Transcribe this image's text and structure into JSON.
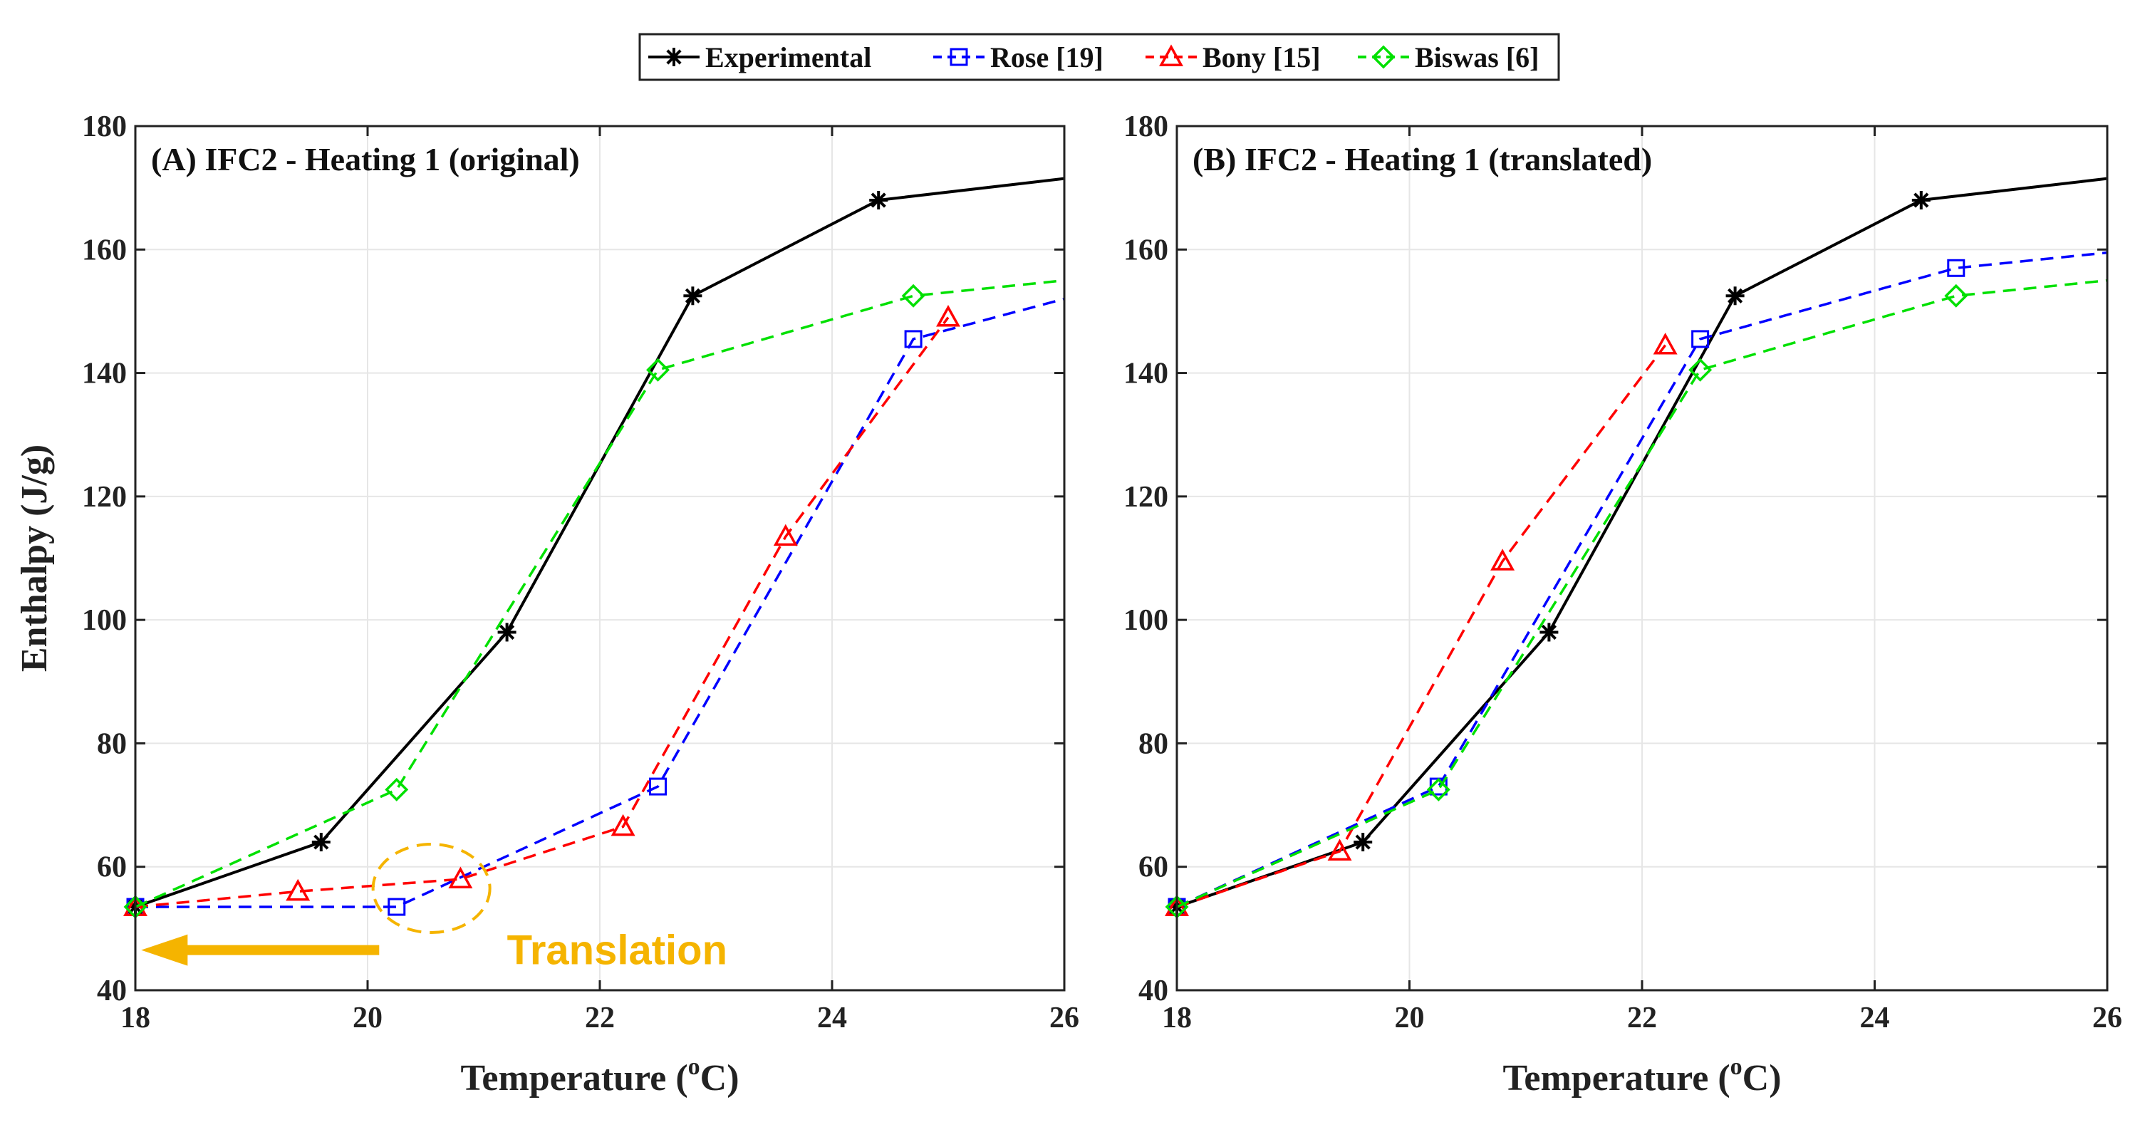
{
  "colors": {
    "experimental": "#000000",
    "rose": "#0000ff",
    "bony": "#ff0000",
    "biswas": "#00e000",
    "annotation": "#f5b400",
    "grid": "#e6e6e6"
  },
  "chart_data": [
    {
      "type": "line",
      "title": "(A) IFC2 - Heating 1 (original)",
      "xlabel": "Temperature (",
      "xlabel_sup": "o",
      "xlabel_end": "C)",
      "ylabel": "Enthalpy (J/g)",
      "xlim": [
        18,
        26
      ],
      "ylim": [
        40,
        180
      ],
      "xticks": [
        18,
        20,
        22,
        24,
        26
      ],
      "yticks": [
        40,
        60,
        80,
        100,
        120,
        140,
        160,
        180
      ],
      "annotation": {
        "text": "Translation"
      },
      "series": [
        {
          "name": "Experimental",
          "key": "experimental",
          "marker": "star",
          "dashed": false,
          "points": [
            [
              18.0,
              53.5
            ],
            [
              19.6,
              64
            ],
            [
              21.2,
              98
            ],
            [
              22.8,
              152.5
            ],
            [
              24.4,
              168
            ],
            [
              26,
              171.5
            ]
          ],
          "markers": [
            [
              18.0,
              53.5
            ],
            [
              19.6,
              64
            ],
            [
              21.2,
              98
            ],
            [
              22.8,
              152.5
            ],
            [
              24.4,
              168
            ]
          ]
        },
        {
          "name": "Rose [19]",
          "key": "rose",
          "marker": "square",
          "dashed": true,
          "points": [
            [
              18.0,
              53.5
            ],
            [
              20.25,
              53.5
            ],
            [
              22.5,
              73
            ],
            [
              24.7,
              145.5
            ],
            [
              26,
              152
            ]
          ],
          "markers": [
            [
              18.0,
              53.5
            ],
            [
              20.25,
              53.5
            ],
            [
              22.5,
              73
            ],
            [
              24.7,
              145.5
            ]
          ]
        },
        {
          "name": "Bony [15]",
          "key": "bony",
          "marker": "triangle",
          "dashed": true,
          "points": [
            [
              18.0,
              53.5
            ],
            [
              19.4,
              56
            ],
            [
              20.8,
              58
            ],
            [
              22.2,
              66.5
            ],
            [
              23.6,
              113.5
            ],
            [
              25.0,
              149
            ]
          ],
          "markers": [
            [
              18.0,
              53.5
            ],
            [
              19.4,
              56
            ],
            [
              20.8,
              58
            ],
            [
              22.2,
              66.5
            ],
            [
              23.6,
              113.5
            ],
            [
              25.0,
              149
            ]
          ]
        },
        {
          "name": "Biswas [6]",
          "key": "biswas",
          "marker": "diamond",
          "dashed": true,
          "points": [
            [
              18.0,
              53.5
            ],
            [
              20.25,
              72.5
            ],
            [
              22.5,
              140.5
            ],
            [
              24.7,
              152.5
            ],
            [
              26,
              155
            ]
          ],
          "markers": [
            [
              18.0,
              53.5
            ],
            [
              20.25,
              72.5
            ],
            [
              22.5,
              140.5
            ],
            [
              24.7,
              152.5
            ]
          ]
        }
      ]
    },
    {
      "type": "line",
      "title": "(B) IFC2 - Heating 1 (translated)",
      "xlabel": "Temperature (",
      "xlabel_sup": "o",
      "xlabel_end": "C)",
      "ylabel": "",
      "xlim": [
        18,
        26
      ],
      "ylim": [
        40,
        180
      ],
      "xticks": [
        18,
        20,
        22,
        24,
        26
      ],
      "yticks": [
        40,
        60,
        80,
        100,
        120,
        140,
        160,
        180
      ],
      "series": [
        {
          "name": "Experimental",
          "key": "experimental",
          "marker": "star",
          "dashed": false,
          "points": [
            [
              18.0,
              53.5
            ],
            [
              19.6,
              64
            ],
            [
              21.2,
              98
            ],
            [
              22.8,
              152.5
            ],
            [
              24.4,
              168
            ],
            [
              26,
              171.5
            ]
          ],
          "markers": [
            [
              18.0,
              53.5
            ],
            [
              19.6,
              64
            ],
            [
              21.2,
              98
            ],
            [
              22.8,
              152.5
            ],
            [
              24.4,
              168
            ]
          ]
        },
        {
          "name": "Rose [19]",
          "key": "rose",
          "marker": "square",
          "dashed": true,
          "points": [
            [
              18.0,
              53.5
            ],
            [
              20.25,
              73
            ],
            [
              22.5,
              145.5
            ],
            [
              24.7,
              157
            ],
            [
              26,
              159.5
            ]
          ],
          "markers": [
            [
              18.0,
              53.5
            ],
            [
              20.25,
              73
            ],
            [
              22.5,
              145.5
            ],
            [
              24.7,
              157
            ]
          ]
        },
        {
          "name": "Bony [15]",
          "key": "bony",
          "marker": "triangle",
          "dashed": true,
          "points": [
            [
              18.0,
              53.5
            ],
            [
              19.4,
              62.5
            ],
            [
              20.8,
              109.5
            ],
            [
              22.2,
              144.5
            ]
          ],
          "markers": [
            [
              18.0,
              53.5
            ],
            [
              19.4,
              62.5
            ],
            [
              20.8,
              109.5
            ],
            [
              22.2,
              144.5
            ]
          ]
        },
        {
          "name": "Biswas [6]",
          "key": "biswas",
          "marker": "diamond",
          "dashed": true,
          "points": [
            [
              18.0,
              53.5
            ],
            [
              20.25,
              72.5
            ],
            [
              22.5,
              140.5
            ],
            [
              24.7,
              152.5
            ],
            [
              26,
              155
            ]
          ],
          "markers": [
            [
              18.0,
              53.5
            ],
            [
              20.25,
              72.5
            ],
            [
              22.5,
              140.5
            ],
            [
              24.7,
              152.5
            ]
          ]
        }
      ]
    }
  ],
  "legend": {
    "entries": [
      {
        "label": "Experimental",
        "key": "experimental",
        "marker": "star",
        "dashed": false
      },
      {
        "label": "Rose [19]",
        "key": "rose",
        "marker": "square",
        "dashed": true
      },
      {
        "label": "Bony [15]",
        "key": "bony",
        "marker": "triangle",
        "dashed": true
      },
      {
        "label": "Biswas [6]",
        "key": "biswas",
        "marker": "diamond",
        "dashed": true
      }
    ]
  }
}
